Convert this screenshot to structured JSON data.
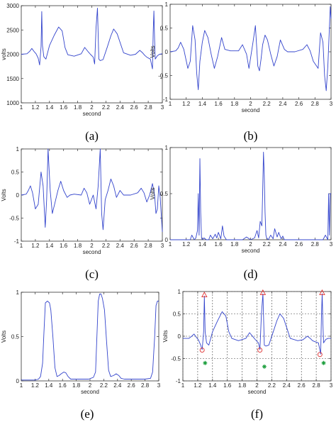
{
  "chart_data": [
    {
      "type": "line",
      "panel": "a",
      "caption": "(a)",
      "title": "",
      "xlabel": "second",
      "ylabel": "volts",
      "xlim": [
        1,
        3
      ],
      "ylim": [
        1000,
        3000
      ],
      "xticks": [
        "1",
        "1.2",
        "1.4",
        "1.6",
        "1.8",
        "2",
        "2.2",
        "2.4",
        "2.6",
        "2.8",
        "3"
      ],
      "yticks": [
        "1000",
        "1500",
        "2000",
        "2500",
        "3000"
      ],
      "grid": false,
      "series": [
        {
          "name": "",
          "color": "#3344cc",
          "x": [
            1,
            1.08,
            1.12,
            1.15,
            1.18,
            1.21,
            1.24,
            1.26,
            1.28,
            1.29,
            1.3,
            1.32,
            1.35,
            1.4,
            1.47,
            1.53,
            1.58,
            1.62,
            1.66,
            1.75,
            1.85,
            1.9,
            1.95,
            1.98,
            2.02,
            2.04,
            2.06,
            2.08,
            2.1,
            2.12,
            2.16,
            2.22,
            2.27,
            2.31,
            2.36,
            2.45,
            2.55,
            2.62,
            2.68,
            2.72,
            2.75,
            2.78,
            2.83,
            2.86,
            2.87,
            2.88,
            2.89,
            2.9,
            2.93,
            2.96,
            3
          ],
          "y": [
            2000,
            2010,
            2060,
            2120,
            2060,
            2010,
            1920,
            1780,
            2150,
            2880,
            2180,
            1950,
            1900,
            2180,
            2400,
            2560,
            2480,
            2140,
            1990,
            1960,
            2010,
            2140,
            2050,
            2000,
            1940,
            1800,
            2550,
            2950,
            1900,
            1870,
            1890,
            2150,
            2380,
            2520,
            2420,
            2030,
            1980,
            2000,
            2080,
            2030,
            1980,
            1940,
            1900,
            1700,
            2450,
            2890,
            2300,
            1900,
            1970,
            2000,
            2010
          ]
        }
      ]
    },
    {
      "type": "line",
      "panel": "b",
      "caption": "(b)",
      "title": "",
      "xlabel": "second",
      "ylabel": "Volts",
      "xlim": [
        1,
        3
      ],
      "ylim": [
        -1,
        1
      ],
      "xticks": [
        "1",
        "1.2",
        "1.4",
        "1.6",
        "1.8",
        "2",
        "2.2",
        "2.4",
        "2.6",
        "2.8",
        "3"
      ],
      "yticks": [
        "-1",
        "-0.5",
        "0",
        "0.5",
        "1"
      ],
      "grid": false,
      "series": [
        {
          "name": "",
          "color": "#3344cc",
          "x": [
            1,
            1.07,
            1.1,
            1.13,
            1.17,
            1.22,
            1.25,
            1.28,
            1.31,
            1.33,
            1.35,
            1.37,
            1.4,
            1.43,
            1.47,
            1.51,
            1.55,
            1.59,
            1.64,
            1.68,
            1.75,
            1.85,
            1.9,
            1.95,
            1.98,
            2.03,
            2.06,
            2.09,
            2.11,
            2.13,
            2.15,
            2.18,
            2.21,
            2.25,
            2.29,
            2.33,
            2.37,
            2.42,
            2.46,
            2.55,
            2.65,
            2.7,
            2.74,
            2.78,
            2.84,
            2.87,
            2.9,
            2.92,
            2.94,
            2.96,
            2.99,
            3
          ],
          "y": [
            0,
            0.02,
            0.08,
            0.2,
            0.05,
            -0.35,
            -0.2,
            0.55,
            0.25,
            -0.45,
            -0.8,
            -0.2,
            0.2,
            0.45,
            0.3,
            -0.05,
            -0.35,
            -0.1,
            0.3,
            0.05,
            0.02,
            0.02,
            0.15,
            -0.05,
            -0.35,
            0.2,
            0.55,
            -0.3,
            -0.4,
            -0.15,
            0.15,
            0.35,
            0.25,
            -0.05,
            -0.3,
            -0.1,
            0.25,
            0.05,
            0,
            0,
            0.05,
            0.15,
            0.02,
            -0.2,
            -0.35,
            0.4,
            0.2,
            -0.5,
            -0.82,
            -0.3,
            0.95,
            0.7
          ]
        }
      ]
    },
    {
      "type": "line",
      "panel": "c",
      "caption": "(c)",
      "title": "",
      "xlabel": "second",
      "ylabel": "Volts",
      "xlim": [
        1,
        3
      ],
      "ylim": [
        -1,
        1
      ],
      "xticks": [
        "1",
        "1.2",
        "1.4",
        "1.6",
        "1.8",
        "2",
        "2.2",
        "2.4",
        "2.6",
        "2.8",
        "3"
      ],
      "yticks": [
        "-1",
        "-0.5",
        "0",
        "0.5",
        "1"
      ],
      "grid": false,
      "series": [
        {
          "name": "",
          "color": "#3344cc",
          "x": [
            1,
            1.07,
            1.1,
            1.13,
            1.16,
            1.2,
            1.24,
            1.28,
            1.31,
            1.34,
            1.36,
            1.38,
            1.41,
            1.44,
            1.48,
            1.52,
            1.56,
            1.6,
            1.65,
            1.69,
            1.75,
            1.85,
            1.89,
            1.93,
            1.97,
            2.02,
            2.06,
            2.09,
            2.12,
            2.14,
            2.16,
            2.19,
            2.23,
            2.27,
            2.31,
            2.35,
            2.4,
            2.45,
            2.55,
            2.65,
            2.7,
            2.74,
            2.78,
            2.82,
            2.86,
            2.89,
            2.91,
            2.93,
            2.95,
            2.97,
            3
          ],
          "y": [
            0,
            0.02,
            0.1,
            0.2,
            0.05,
            -0.3,
            -0.2,
            0.5,
            0.2,
            -0.7,
            -0.1,
            1,
            0.1,
            -0.4,
            -0.15,
            0.1,
            0.3,
            0.1,
            -0.05,
            0,
            0.02,
            0,
            0.15,
            0.05,
            -0.2,
            0,
            -0.3,
            0.2,
            1,
            -0.4,
            -0.75,
            -0.1,
            0.1,
            0.35,
            0.2,
            -0.05,
            0.1,
            0,
            0,
            0.05,
            0.15,
            0.05,
            -0.15,
            0,
            0.25,
            0,
            -0.4,
            -0.3,
            0.2,
            -0.05,
            -0.8
          ]
        }
      ]
    },
    {
      "type": "line",
      "panel": "d",
      "caption": "(d)",
      "title": "",
      "xlabel": "second",
      "ylabel": "Volts",
      "xlim": [
        1,
        3
      ],
      "ylim": [
        0,
        1
      ],
      "xticks": [
        "1",
        "1.2",
        "1.4",
        "1.6",
        "1.8",
        "2",
        "2.2",
        "2.4",
        "2.6",
        "2.8",
        "3"
      ],
      "yticks": [
        "0",
        "0.5",
        "1"
      ],
      "grid": false,
      "series": [
        {
          "name": "",
          "color": "#3344cc",
          "x": [
            1,
            1.1,
            1.2,
            1.25,
            1.27,
            1.3,
            1.32,
            1.34,
            1.35,
            1.36,
            1.37,
            1.38,
            1.39,
            1.4,
            1.42,
            1.45,
            1.48,
            1.5,
            1.53,
            1.56,
            1.58,
            1.6,
            1.63,
            1.65,
            1.67,
            1.7,
            1.8,
            1.9,
            1.95,
            2,
            2.05,
            2.08,
            2.1,
            2.12,
            2.14,
            2.15,
            2.16,
            2.17,
            2.18,
            2.19,
            2.2,
            2.22,
            2.25,
            2.28,
            2.3,
            2.33,
            2.35,
            2.38,
            2.4,
            2.42,
            2.45,
            2.5,
            2.6,
            2.7,
            2.8,
            2.85,
            2.9,
            2.93,
            2.96,
            2.97,
            2.98,
            2.99,
            3
          ],
          "y": [
            0,
            0,
            0,
            0,
            0.05,
            0,
            0.02,
            0.1,
            0.5,
            0.05,
            0.88,
            0.3,
            0.02,
            0,
            0.02,
            0,
            0,
            0.05,
            0.01,
            0.06,
            0.02,
            0.08,
            0.01,
            0.15,
            0.04,
            0,
            0,
            0,
            0.03,
            0,
            0.02,
            0.1,
            0.02,
            0.2,
            0.15,
            0.5,
            0.95,
            0.7,
            0.3,
            0.05,
            0.02,
            0,
            0.05,
            0.01,
            0.12,
            0.03,
            0.08,
            0.01,
            0.04,
            0,
            0,
            0,
            0,
            0,
            0,
            0,
            0,
            0.05,
            0,
            0.5,
            0.05,
            0.5,
            0.5
          ]
        }
      ]
    },
    {
      "type": "line",
      "panel": "e",
      "caption": "(e)",
      "title": "",
      "xlabel": "second",
      "ylabel": "Volts",
      "xlim": [
        1,
        3
      ],
      "ylim": [
        0,
        1
      ],
      "xticks": [
        "1",
        "1.2",
        "1.4",
        "1.6",
        "1.8",
        "2",
        "2.2",
        "2.4",
        "2.6",
        "2.8",
        "3"
      ],
      "yticks": [
        "0",
        "0.5",
        "1"
      ],
      "grid": false,
      "series": [
        {
          "name": "",
          "color": "#3344cc",
          "x": [
            1,
            1.1,
            1.2,
            1.25,
            1.28,
            1.31,
            1.33,
            1.35,
            1.38,
            1.41,
            1.43,
            1.46,
            1.49,
            1.52,
            1.55,
            1.58,
            1.62,
            1.65,
            1.68,
            1.72,
            1.8,
            1.9,
            1.98,
            2.05,
            2.08,
            2.1,
            2.12,
            2.14,
            2.16,
            2.18,
            2.21,
            2.24,
            2.27,
            2.3,
            2.34,
            2.38,
            2.42,
            2.45,
            2.5,
            2.6,
            2.7,
            2.8,
            2.88,
            2.91,
            2.94,
            2.96,
            2.98,
            3
          ],
          "y": [
            0.01,
            0.01,
            0.01,
            0.02,
            0.05,
            0.2,
            0.55,
            0.88,
            0.9,
            0.88,
            0.8,
            0.5,
            0.15,
            0.05,
            0.06,
            0.08,
            0.1,
            0.09,
            0.05,
            0.02,
            0.02,
            0.02,
            0.02,
            0.04,
            0.1,
            0.5,
            0.9,
            0.98,
            0.98,
            0.93,
            0.8,
            0.45,
            0.12,
            0.05,
            0.06,
            0.08,
            0.06,
            0.03,
            0.02,
            0.02,
            0.02,
            0.02,
            0.03,
            0.1,
            0.5,
            0.85,
            0.9,
            0.9
          ]
        }
      ]
    },
    {
      "type": "line",
      "panel": "f",
      "caption": "(f)",
      "title": "",
      "xlabel": "second",
      "ylabel": "Volts",
      "xlim": [
        1,
        3
      ],
      "ylim": [
        -1,
        1
      ],
      "xticks": [
        "1",
        "1.2",
        "1.4",
        "1.6",
        "1.8",
        "2",
        "2.2",
        "2.4",
        "2.6",
        "2.8",
        "3"
      ],
      "yticks": [
        "-1",
        "-0.5",
        "0",
        "0.5",
        "1"
      ],
      "grid": true,
      "series": [
        {
          "name": "",
          "color": "#3344cc",
          "x": [
            1,
            1.08,
            1.12,
            1.15,
            1.18,
            1.21,
            1.24,
            1.26,
            1.28,
            1.29,
            1.3,
            1.32,
            1.35,
            1.4,
            1.47,
            1.53,
            1.58,
            1.62,
            1.66,
            1.75,
            1.85,
            1.9,
            1.95,
            1.98,
            2.02,
            2.04,
            2.06,
            2.08,
            2.1,
            2.12,
            2.16,
            2.22,
            2.27,
            2.31,
            2.36,
            2.45,
            2.55,
            2.62,
            2.68,
            2.72,
            2.75,
            2.78,
            2.83,
            2.86,
            2.87,
            2.88,
            2.89,
            2.9,
            2.93,
            2.96,
            3
          ],
          "y": [
            -0.05,
            -0.05,
            0,
            0.05,
            -0.02,
            -0.08,
            -0.2,
            -0.3,
            0.1,
            0.9,
            0.1,
            -0.15,
            -0.2,
            0.1,
            0.35,
            0.55,
            0.45,
            0.1,
            -0.05,
            -0.1,
            -0.05,
            0.08,
            -0.02,
            -0.08,
            -0.15,
            -0.3,
            0.5,
            0.95,
            -0.2,
            -0.22,
            -0.2,
            0.1,
            0.35,
            0.5,
            0.4,
            -0.05,
            -0.1,
            -0.08,
            0,
            -0.05,
            -0.1,
            -0.12,
            -0.15,
            -0.4,
            0.4,
            0.95,
            0.3,
            -0.15,
            -0.07,
            -0.05,
            -0.05
          ]
        }
      ],
      "markers": {
        "triangles": [
          [
            1.29,
            0.92
          ],
          [
            2.08,
            0.97
          ],
          [
            2.88,
            0.97
          ]
        ],
        "circles": [
          [
            1.26,
            -0.31
          ],
          [
            2.04,
            -0.31
          ],
          [
            2.85,
            -0.41
          ]
        ],
        "stars": [
          [
            1.3,
            -0.6
          ],
          [
            2.1,
            -0.68
          ],
          [
            2.9,
            -0.6
          ]
        ]
      }
    }
  ]
}
